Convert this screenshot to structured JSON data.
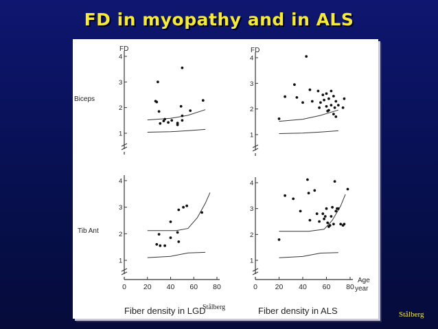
{
  "slide": {
    "title": "FD in myopathy and in ALS",
    "credit": "Stålberg"
  },
  "figure": {
    "y_axis_label": "FD",
    "row_labels": [
      "Biceps",
      "Tib  Ant"
    ],
    "x_axis_label_1": "Age",
    "x_axis_label_2": "year",
    "caption_left": "Fiber   density   in   LGD",
    "caption_right": "Fiber  density   in   ALS",
    "overlap_credit": "Stålberg"
  },
  "chart_data": [
    {
      "type": "scatter",
      "title": "",
      "panel": "Biceps – LGD",
      "ylabel": "FD",
      "xlim": [
        0,
        80
      ],
      "ylim": [
        1,
        4
      ],
      "yticks": [
        1,
        2,
        3,
        4
      ],
      "points": [
        [
          27,
          2.25
        ],
        [
          29,
          3.0
        ],
        [
          28,
          2.22
        ],
        [
          30,
          1.85
        ],
        [
          31,
          1.38
        ],
        [
          34,
          1.48
        ],
        [
          35,
          1.55
        ],
        [
          38,
          1.42
        ],
        [
          41,
          1.5
        ],
        [
          46,
          1.4
        ],
        [
          46,
          1.33
        ],
        [
          49,
          2.05
        ],
        [
          50,
          1.68
        ],
        [
          50,
          1.5
        ],
        [
          50,
          3.55
        ],
        [
          57,
          1.88
        ],
        [
          68,
          2.28
        ]
      ],
      "reference_upper": [
        [
          20,
          1.52
        ],
        [
          40,
          1.58
        ],
        [
          55,
          1.7
        ],
        [
          70,
          1.92
        ]
      ],
      "reference_lower": [
        [
          20,
          1.04
        ],
        [
          40,
          1.06
        ],
        [
          55,
          1.1
        ],
        [
          70,
          1.15
        ]
      ]
    },
    {
      "type": "scatter",
      "title": "",
      "panel": "Biceps – ALS",
      "ylabel": "FD",
      "xlim": [
        0,
        80
      ],
      "ylim": [
        1,
        4
      ],
      "yticks": [
        1,
        2,
        3,
        4
      ],
      "points": [
        [
          20,
          1.62
        ],
        [
          25,
          2.48
        ],
        [
          33,
          2.95
        ],
        [
          35,
          2.45
        ],
        [
          40,
          2.25
        ],
        [
          43,
          4.05
        ],
        [
          46,
          2.75
        ],
        [
          48,
          2.3
        ],
        [
          53,
          2.7
        ],
        [
          54,
          2.05
        ],
        [
          55,
          2.25
        ],
        [
          57,
          2.55
        ],
        [
          58,
          2.35
        ],
        [
          60,
          2.6
        ],
        [
          60,
          2.1
        ],
        [
          61,
          1.92
        ],
        [
          62,
          2.4
        ],
        [
          62,
          1.95
        ],
        [
          64,
          2.7
        ],
        [
          64,
          2.15
        ],
        [
          66,
          2.5
        ],
        [
          66,
          1.8
        ],
        [
          67,
          2.05
        ],
        [
          68,
          1.7
        ],
        [
          68,
          2.3
        ],
        [
          70,
          2.15
        ],
        [
          74,
          2.05
        ],
        [
          75,
          2.4
        ]
      ],
      "reference_upper": [
        [
          20,
          1.52
        ],
        [
          40,
          1.6
        ],
        [
          55,
          1.75
        ],
        [
          70,
          1.96
        ]
      ],
      "reference_lower": [
        [
          20,
          1.04
        ],
        [
          40,
          1.06
        ],
        [
          55,
          1.1
        ],
        [
          70,
          1.15
        ]
      ]
    },
    {
      "type": "scatter",
      "title": "",
      "panel": "Tib Ant – LGD",
      "xlim": [
        0,
        80
      ],
      "ylim": [
        1,
        4
      ],
      "xticks": [
        0,
        20,
        40,
        60,
        80
      ],
      "yticks": [
        1,
        2,
        3,
        4
      ],
      "points": [
        [
          28,
          1.6
        ],
        [
          30,
          1.98
        ],
        [
          31,
          1.55
        ],
        [
          35,
          1.55
        ],
        [
          40,
          1.85
        ],
        [
          40,
          2.45
        ],
        [
          46,
          2.05
        ],
        [
          47,
          1.7
        ],
        [
          47,
          2.9
        ],
        [
          51,
          3.0
        ],
        [
          54,
          3.05
        ],
        [
          67,
          2.8
        ]
      ],
      "reference_upper": [
        [
          20,
          2.12
        ],
        [
          45,
          2.12
        ],
        [
          55,
          2.2
        ],
        [
          63,
          2.6
        ],
        [
          70,
          3.15
        ],
        [
          74,
          3.55
        ]
      ],
      "reference_lower": [
        [
          20,
          1.1
        ],
        [
          40,
          1.15
        ],
        [
          55,
          1.28
        ],
        [
          70,
          1.3
        ]
      ]
    },
    {
      "type": "scatter",
      "title": "",
      "panel": "Tib Ant – ALS",
      "xlim": [
        0,
        80
      ],
      "ylim": [
        1,
        4
      ],
      "xticks": [
        0,
        20,
        40,
        60,
        80
      ],
      "yticks": [
        1,
        2,
        3,
        4
      ],
      "xlabel": "Age year",
      "points": [
        [
          20,
          1.8
        ],
        [
          25,
          3.5
        ],
        [
          32,
          3.38
        ],
        [
          38,
          2.9
        ],
        [
          44,
          4.12
        ],
        [
          45,
          3.6
        ],
        [
          46,
          2.55
        ],
        [
          50,
          3.7
        ],
        [
          52,
          2.8
        ],
        [
          54,
          2.5
        ],
        [
          57,
          2.8
        ],
        [
          58,
          2.6
        ],
        [
          59,
          2.7
        ],
        [
          60,
          3.0
        ],
        [
          61,
          2.45
        ],
        [
          62,
          2.3
        ],
        [
          63,
          2.35
        ],
        [
          64,
          2.7
        ],
        [
          65,
          3.05
        ],
        [
          66,
          2.4
        ],
        [
          67,
          4.05
        ],
        [
          68,
          2.9
        ],
        [
          69,
          3.0
        ],
        [
          70,
          3.0
        ],
        [
          72,
          2.4
        ],
        [
          74,
          2.35
        ],
        [
          75,
          2.4
        ],
        [
          78,
          3.75
        ]
      ],
      "reference_upper": [
        [
          20,
          2.12
        ],
        [
          45,
          2.12
        ],
        [
          58,
          2.2
        ],
        [
          65,
          2.55
        ],
        [
          72,
          3.1
        ],
        [
          76,
          3.55
        ]
      ],
      "reference_lower": [
        [
          20,
          1.1
        ],
        [
          40,
          1.15
        ],
        [
          55,
          1.28
        ],
        [
          70,
          1.3
        ]
      ]
    }
  ]
}
